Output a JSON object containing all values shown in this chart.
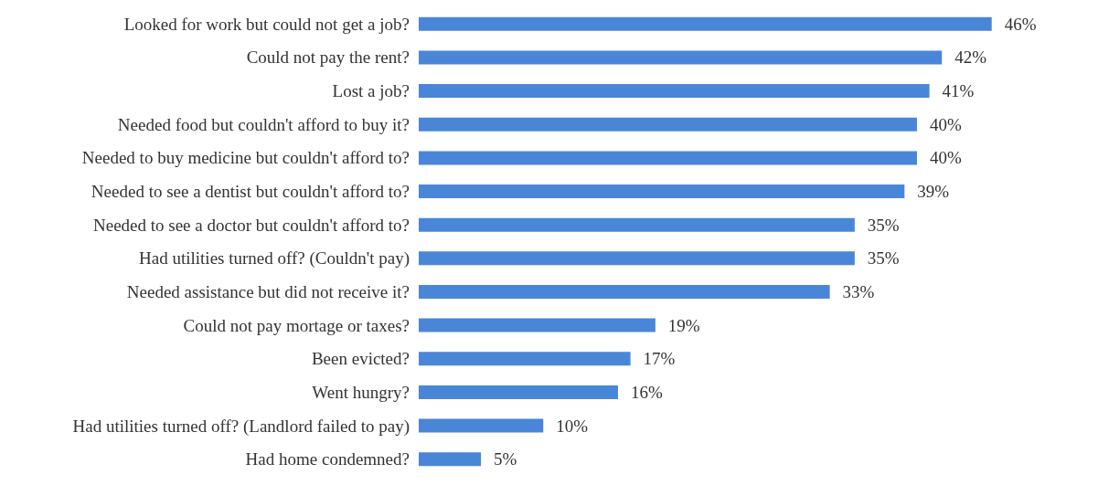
{
  "chart_data": {
    "type": "bar",
    "orientation": "horizontal",
    "categories": [
      "Looked for work but could not get a job?",
      "Could not pay the rent?",
      "Lost a job?",
      "Needed food but couldn't afford to buy it?",
      "Needed to buy medicine but couldn't afford to?",
      "Needed to see a dentist but couldn't afford to?",
      "Needed to see a doctor but couldn't afford to?",
      "Had utilities turned off? (Couldn't pay)",
      "Needed assistance but did not receive it?",
      "Could not pay mortage or taxes?",
      "Been evicted?",
      "Went hungry?",
      "Had utilities turned off? (Landlord failed to pay)",
      "Had home condemned?"
    ],
    "values": [
      46,
      42,
      41,
      40,
      40,
      39,
      35,
      35,
      33,
      19,
      17,
      16,
      10,
      5
    ],
    "value_labels": [
      "46%",
      "42%",
      "41%",
      "40%",
      "40%",
      "39%",
      "35%",
      "35%",
      "33%",
      "19%",
      "17%",
      "16%",
      "10%",
      "5%"
    ],
    "color": "#4a86d8"
  }
}
